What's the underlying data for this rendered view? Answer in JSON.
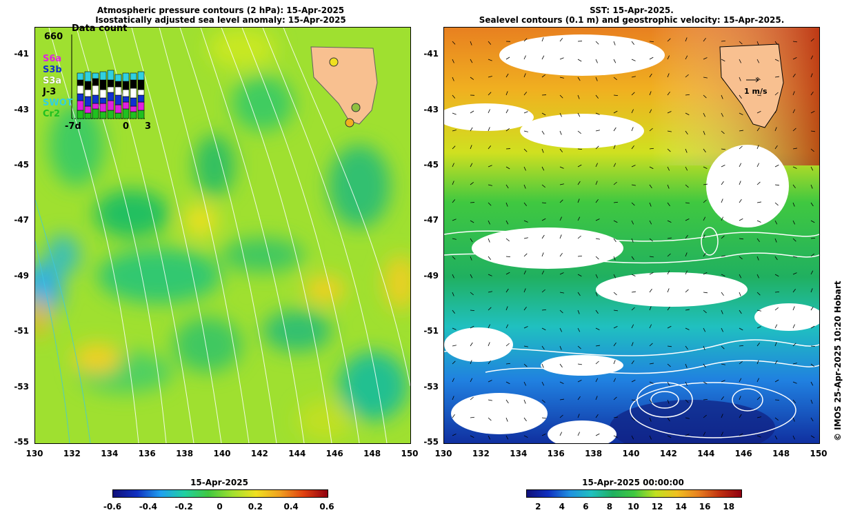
{
  "left_panel": {
    "title_line1": "Atmospheric pressure contours (2 hPa): 15-Apr-2025",
    "title_line2": "Isostatically adjusted sea level anomaly: 15-Apr-2025",
    "colorbar_title": "15-Apr-2025",
    "colorbar_ticks": [
      "-0.6",
      "-0.4",
      "-0.2",
      "0",
      "0.2",
      "0.4",
      "0.6"
    ],
    "colorbar_range": [
      -0.6,
      0.6
    ],
    "data_count": {
      "max_label": "660",
      "title": "Data count",
      "x_start": "-7d",
      "x_zero": "0",
      "x_end": "3",
      "satellites": [
        {
          "name": "S6a",
          "color": "#e020e0"
        },
        {
          "name": "S3b",
          "color": "#1030d0"
        },
        {
          "name": "S3a",
          "color": "#ffffff"
        },
        {
          "name": "J-3",
          "color": "#000000"
        },
        {
          "name": "SWOT",
          "color": "#30d0e0"
        },
        {
          "name": "Cr2",
          "color": "#20c020"
        }
      ]
    }
  },
  "right_panel": {
    "title_line1": "SST: 15-Apr-2025.",
    "title_line2": "Sealevel contours (0.1 m) and geostrophic velocity: 15-Apr-2025.",
    "colorbar_title": "15-Apr-2025 00:00:00",
    "colorbar_ticks": [
      "2",
      "4",
      "6",
      "8",
      "10",
      "12",
      "14",
      "16",
      "18"
    ],
    "colorbar_range": [
      1,
      19
    ],
    "speed_label": "1 m/s"
  },
  "axes": {
    "y_ticks": [
      "-41",
      "-43",
      "-45",
      "-47",
      "-49",
      "-51",
      "-53",
      "-55"
    ],
    "x_ticks": [
      "130",
      "132",
      "134",
      "136",
      "138",
      "140",
      "142",
      "144",
      "146",
      "148",
      "150"
    ],
    "lon_range": [
      130,
      150
    ],
    "lat_range": [
      -55,
      -40
    ]
  },
  "credit": "© IMOS 25-Apr-2025 10:20 Hobart"
}
